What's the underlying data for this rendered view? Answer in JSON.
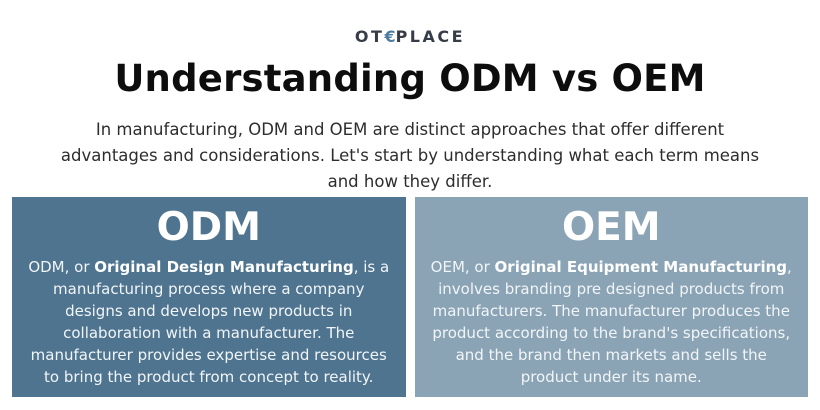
{
  "logo": {
    "prefix": "OT",
    "glyph": "€",
    "suffix": "PLACE",
    "accent_color": "#4c7ba0",
    "text_color": "#363c48"
  },
  "title": "Understanding ODM vs OEM",
  "intro": "In manufacturing, ODM and OEM are distinct approaches that offer different advantages and considerations. Let's start by understanding what each term means and how they differ.",
  "cards": [
    {
      "heading": "ODM",
      "body_prefix": "ODM, or ",
      "body_bold": "Original Design Manufacturing",
      "body_suffix": ", is a manufacturing process where a company designs and develops new products in collaboration with a manufacturer. The manufacturer provides expertise and resources to bring the product from concept to reality.",
      "bg_color": "#4e7490"
    },
    {
      "heading": "OEM",
      "body_prefix": "OEM, or ",
      "body_bold": "Original Equipment Manufacturing",
      "body_suffix": ", involves branding pre designed products from manufacturers. The manufacturer produces the product according to the brand's specifications, and the brand then markets and sells the product under its name.",
      "bg_color": "#8aa4b6"
    }
  ]
}
